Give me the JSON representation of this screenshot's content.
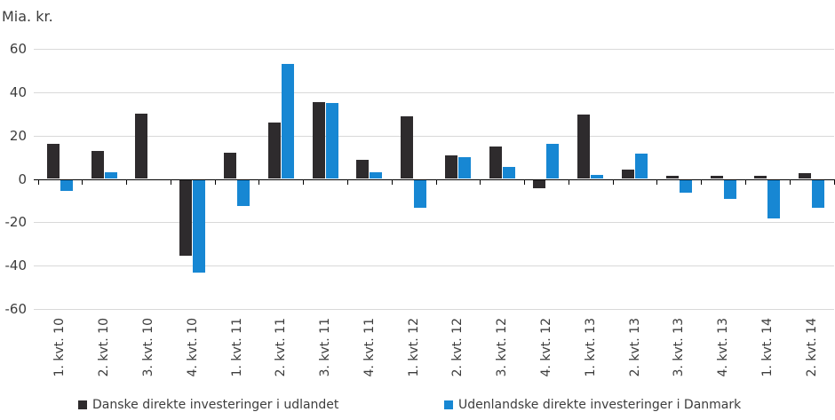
{
  "chart_data": {
    "type": "bar",
    "title": "Mia. kr.",
    "categories": [
      "1. kvt. 10",
      "2. kvt. 10",
      "3. kvt. 10",
      "4. kvt. 10",
      "1. kvt. 11",
      "2. kvt. 11",
      "3. kvt. 11",
      "4. kvt. 11",
      "1. kvt. 12",
      "2. kvt. 12",
      "3. kvt. 12",
      "4. kvt. 12",
      "1. kvt. 13",
      "2. kvt. 13",
      "3. kvt. 13",
      "4. kvt. 13",
      "1. kvt. 14",
      "2. kvt. 14"
    ],
    "series": [
      {
        "name": "Danske direkte investeringer i udlandet",
        "color": "#2e2b2d",
        "values": [
          16,
          13,
          30,
          -35,
          12,
          26,
          35.5,
          9,
          29,
          11,
          15,
          -4,
          29.5,
          4.5,
          1.5,
          1.5,
          1.5,
          2.5
        ]
      },
      {
        "name": "Udenlandske direkte investeringer i Danmark",
        "color": "#1787d3",
        "values": [
          -5,
          3,
          0,
          -43,
          -12,
          53,
          35,
          3,
          -13,
          10,
          5.5,
          16,
          2,
          11.5,
          -6,
          -9,
          -18,
          -13
        ]
      }
    ],
    "ylabel": "Mia. kr.",
    "ylim": [
      -60,
      60
    ],
    "yticks": [
      60,
      40,
      20,
      0,
      -20,
      -40,
      -60
    ],
    "grid": true,
    "gridline_color": "#d9d9d9",
    "axis_color": "#000000",
    "text_color": "#3d3d3d",
    "legend_position": "bottom"
  }
}
